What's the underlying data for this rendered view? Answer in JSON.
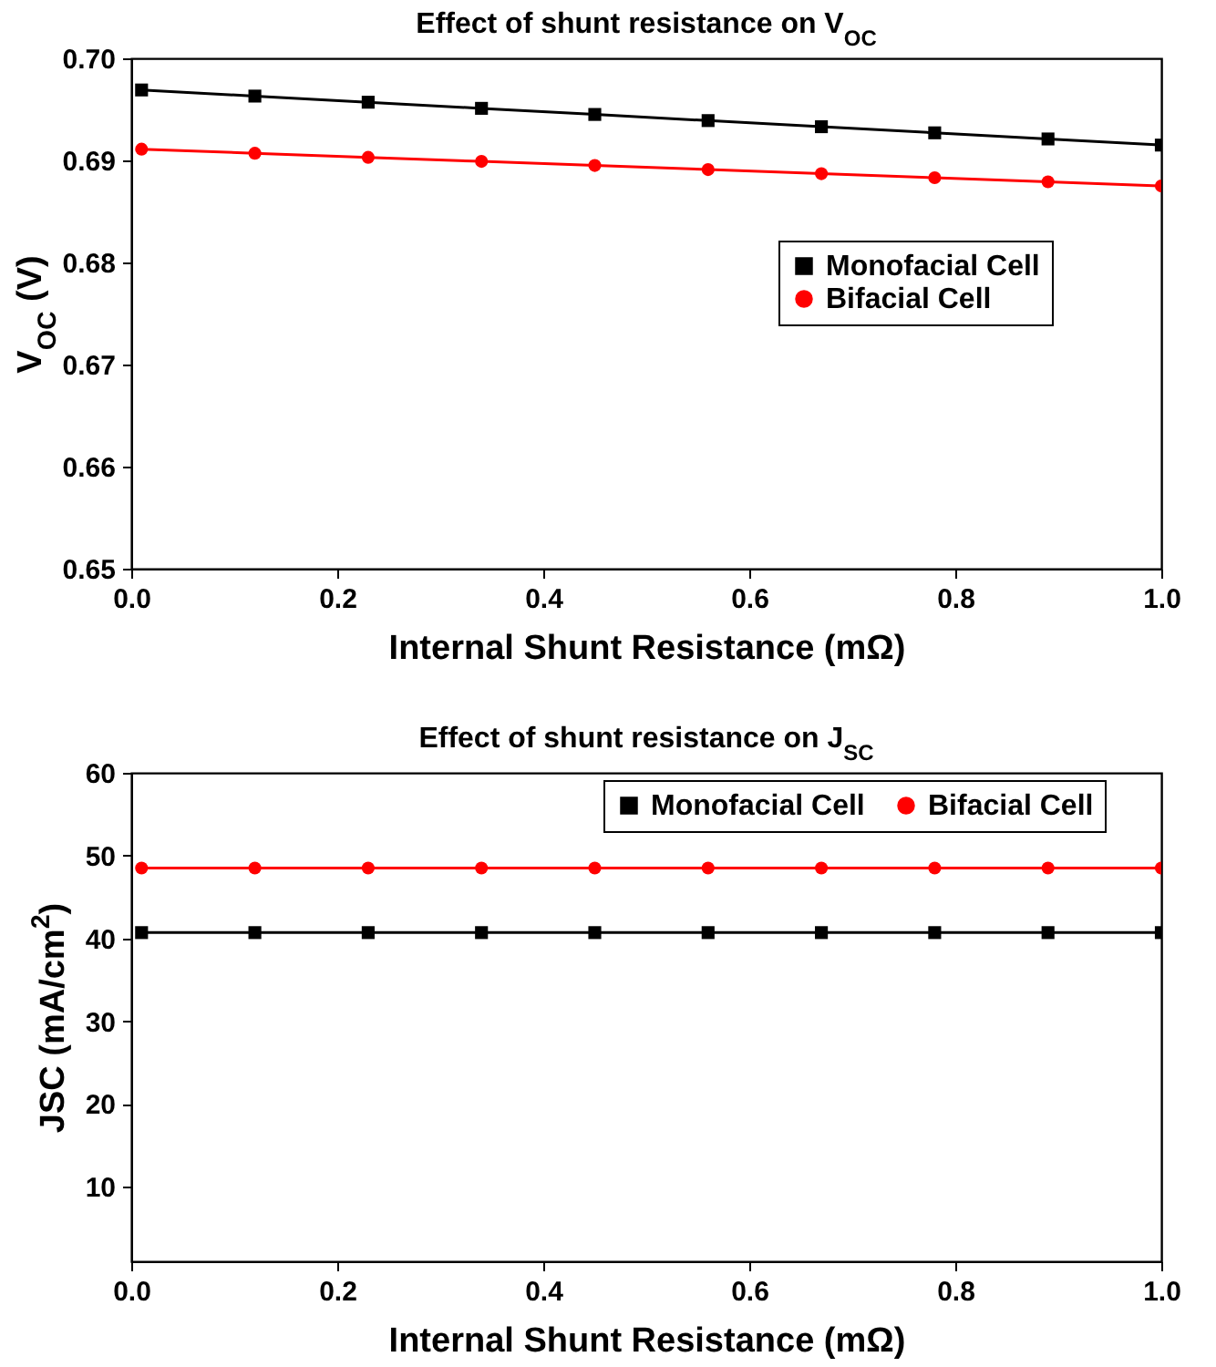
{
  "chart_data": [
    {
      "type": "line",
      "title": "Effect of shunt resistance on V$_{OC}$",
      "xlabel": "Internal Shunt Resistance (mΩ)",
      "ylabel": "V$_{OC}$ (V)",
      "x": [
        0.01,
        0.12,
        0.23,
        0.34,
        0.45,
        0.56,
        0.67,
        0.78,
        0.89,
        1.0
      ],
      "xlim": [
        0,
        1
      ],
      "xticks": [
        {
          "value": 0,
          "label": "0.0"
        },
        {
          "value": 0.2,
          "label": "0.2"
        },
        {
          "value": 0.4,
          "label": "0.4"
        },
        {
          "value": 0.6,
          "label": "0.6"
        },
        {
          "value": 0.8,
          "label": "0.8"
        },
        {
          "value": 1,
          "label": "1.0"
        }
      ],
      "ylim": [
        0.65,
        0.7
      ],
      "yticks": [
        0.65,
        0.66,
        0.67,
        0.68,
        0.69,
        {
          "value": 0.7,
          "label": "0.70"
        }
      ],
      "legend": "top right",
      "grid": false,
      "line_style": "solid",
      "series": [
        {
          "name": "Monofacial Cell",
          "color": "#000000",
          "marker": "square",
          "values": [
            0.6969,
            0.6963,
            0.6957,
            0.6951,
            0.6945,
            0.6939,
            0.6933,
            0.6927,
            0.6921,
            0.6915
          ]
        },
        {
          "name": "Bifacial Cell",
          "color": "#ff0000",
          "marker": "circle",
          "values": [
            0.6911,
            0.6907,
            0.6903,
            0.6899,
            0.6895,
            0.6891,
            0.6887,
            0.6883,
            0.6879,
            0.6875
          ]
        }
      ]
    },
    {
      "type": "line",
      "title": "Effect of shunt resistance on J$_{SC}$",
      "xlabel": "Internal Shunt Resistance (mΩ)",
      "ylabel": "JSC (mA/cm$^{2}$)",
      "x": [
        0.01,
        0.12,
        0.23,
        0.34,
        0.45,
        0.56,
        0.67,
        0.78,
        0.89,
        1.0
      ],
      "xlim": [
        0,
        1
      ],
      "xticks": [
        {
          "value": 0,
          "label": "0.0"
        },
        {
          "value": 0.2,
          "label": "0.2"
        },
        {
          "value": 0.4,
          "label": "0.4"
        },
        {
          "value": 0.6,
          "label": "0.6"
        },
        {
          "value": 0.8,
          "label": "0.8"
        },
        {
          "value": 1,
          "label": "1.0"
        }
      ],
      "ylim": [
        1,
        60
      ],
      "yticks": [
        10,
        20,
        30,
        40,
        50,
        60
      ],
      "legend": "top right",
      "grid": false,
      "line_style": "solid",
      "series": [
        {
          "name": "Monofacial Cell",
          "color": "#000000",
          "marker": "square",
          "values": [
            40.7,
            40.7,
            40.7,
            40.7,
            40.7,
            40.7,
            40.7,
            40.7,
            40.7,
            40.7
          ]
        },
        {
          "name": "Bifacial Cell",
          "color": "#ff0000",
          "marker": "circle",
          "values": [
            48.5,
            48.5,
            48.5,
            48.5,
            48.5,
            48.5,
            48.5,
            48.5,
            48.5,
            48.5
          ]
        }
      ]
    }
  ]
}
